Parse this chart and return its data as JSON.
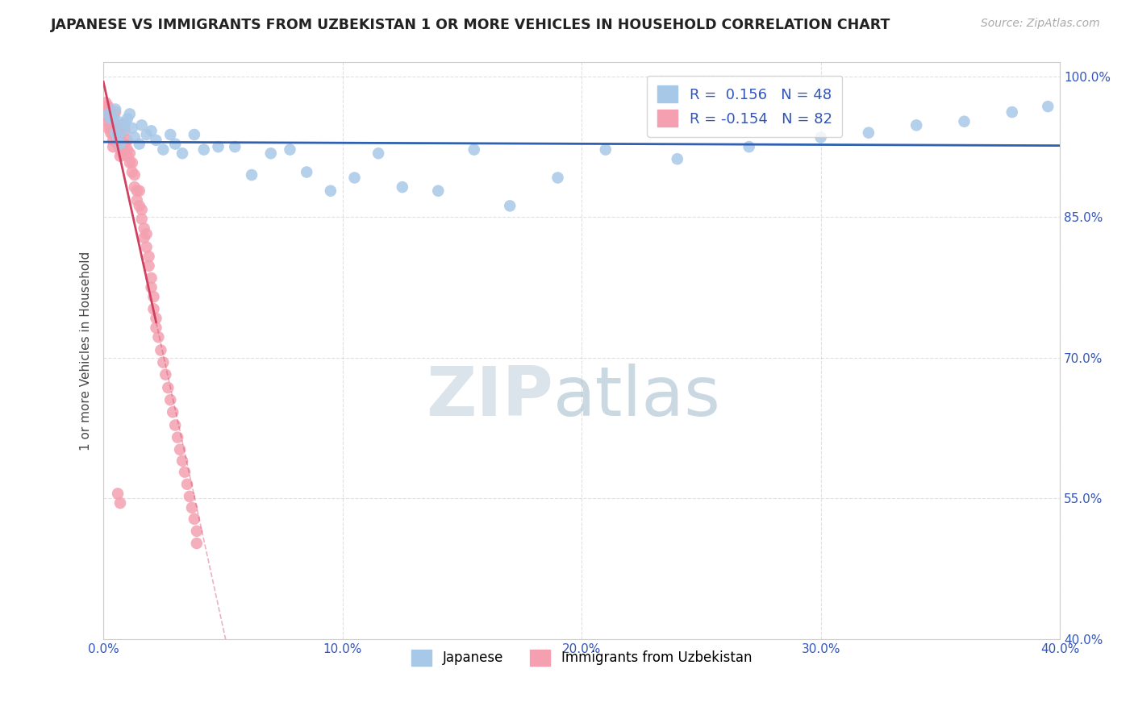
{
  "title": "JAPANESE VS IMMIGRANTS FROM UZBEKISTAN 1 OR MORE VEHICLES IN HOUSEHOLD CORRELATION CHART",
  "source": "Source: ZipAtlas.com",
  "xlabel": "",
  "ylabel": "1 or more Vehicles in Household",
  "xlim": [
    0.0,
    0.4
  ],
  "ylim": [
    0.4,
    1.015
  ],
  "xticklabels": [
    "0.0%",
    "10.0%",
    "20.0%",
    "30.0%",
    "40.0%"
  ],
  "xtick_positions": [
    0.0,
    0.1,
    0.2,
    0.3,
    0.4
  ],
  "ytick_positions": [
    1.0,
    0.85,
    0.7,
    0.55,
    0.4
  ],
  "yticklabels": [
    "100.0%",
    "85.0%",
    "70.0%",
    "55.0%",
    "40.0%"
  ],
  "legend_japanese_R": "0.156",
  "legend_japanese_N": "48",
  "legend_uzbek_R": "-0.154",
  "legend_uzbek_N": "82",
  "blue_color": "#a8c8e8",
  "pink_color": "#f4a0b0",
  "blue_line_color": "#3060b0",
  "pink_line_color": "#d04060",
  "watermark_zip": "ZIP",
  "watermark_atlas": "atlas",
  "background_color": "#ffffff",
  "japanese_x": [
    0.002,
    0.003,
    0.004,
    0.005,
    0.005,
    0.006,
    0.006,
    0.007,
    0.008,
    0.009,
    0.01,
    0.011,
    0.012,
    0.013,
    0.015,
    0.016,
    0.018,
    0.02,
    0.022,
    0.025,
    0.028,
    0.03,
    0.033,
    0.038,
    0.042,
    0.048,
    0.055,
    0.062,
    0.07,
    0.078,
    0.085,
    0.095,
    0.105,
    0.115,
    0.125,
    0.14,
    0.155,
    0.17,
    0.19,
    0.21,
    0.24,
    0.27,
    0.3,
    0.32,
    0.34,
    0.36,
    0.38,
    0.395
  ],
  "japanese_y": [
    0.96,
    0.955,
    0.955,
    0.965,
    0.94,
    0.952,
    0.935,
    0.928,
    0.942,
    0.95,
    0.955,
    0.96,
    0.945,
    0.935,
    0.928,
    0.948,
    0.938,
    0.942,
    0.932,
    0.922,
    0.938,
    0.928,
    0.918,
    0.938,
    0.922,
    0.925,
    0.925,
    0.895,
    0.918,
    0.922,
    0.898,
    0.878,
    0.892,
    0.918,
    0.882,
    0.878,
    0.922,
    0.862,
    0.892,
    0.922,
    0.912,
    0.925,
    0.935,
    0.94,
    0.948,
    0.952,
    0.962,
    0.968
  ],
  "uzbek_x": [
    0.001,
    0.001,
    0.001,
    0.001,
    0.002,
    0.002,
    0.002,
    0.002,
    0.002,
    0.003,
    0.003,
    0.003,
    0.003,
    0.003,
    0.004,
    0.004,
    0.004,
    0.004,
    0.004,
    0.005,
    0.005,
    0.005,
    0.005,
    0.006,
    0.006,
    0.006,
    0.006,
    0.007,
    0.007,
    0.007,
    0.008,
    0.008,
    0.008,
    0.009,
    0.009,
    0.01,
    0.01,
    0.01,
    0.011,
    0.011,
    0.012,
    0.012,
    0.013,
    0.013,
    0.014,
    0.014,
    0.015,
    0.015,
    0.016,
    0.016,
    0.017,
    0.017,
    0.018,
    0.018,
    0.019,
    0.019,
    0.02,
    0.02,
    0.021,
    0.021,
    0.022,
    0.022,
    0.023,
    0.024,
    0.025,
    0.026,
    0.027,
    0.028,
    0.029,
    0.03,
    0.031,
    0.032,
    0.033,
    0.034,
    0.035,
    0.036,
    0.037,
    0.038,
    0.039,
    0.039,
    0.006,
    0.007
  ],
  "uzbek_y": [
    0.968,
    0.958,
    0.963,
    0.972,
    0.968,
    0.963,
    0.958,
    0.952,
    0.945,
    0.963,
    0.958,
    0.952,
    0.945,
    0.94,
    0.958,
    0.948,
    0.938,
    0.932,
    0.925,
    0.948,
    0.942,
    0.938,
    0.962,
    0.948,
    0.942,
    0.932,
    0.928,
    0.938,
    0.922,
    0.915,
    0.948,
    0.928,
    0.918,
    0.942,
    0.928,
    0.932,
    0.922,
    0.915,
    0.918,
    0.908,
    0.908,
    0.898,
    0.895,
    0.882,
    0.878,
    0.868,
    0.878,
    0.862,
    0.858,
    0.848,
    0.838,
    0.828,
    0.832,
    0.818,
    0.808,
    0.798,
    0.785,
    0.775,
    0.765,
    0.752,
    0.742,
    0.732,
    0.722,
    0.708,
    0.695,
    0.682,
    0.668,
    0.655,
    0.642,
    0.628,
    0.615,
    0.602,
    0.59,
    0.578,
    0.565,
    0.552,
    0.54,
    0.528,
    0.515,
    0.502,
    0.555,
    0.545
  ]
}
